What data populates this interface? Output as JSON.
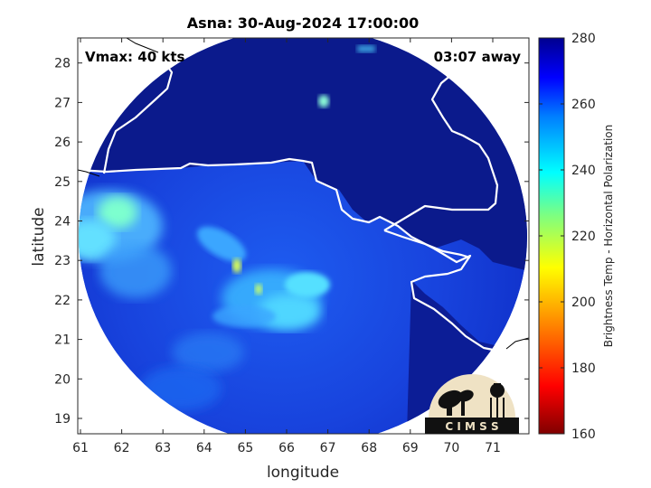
{
  "title": "Asna: 30-Aug-2024 17:00:00",
  "vmax_label": "Vmax: 40 kts",
  "away_label": "03:07 away",
  "xlabel": "longitude",
  "ylabel": "latitude",
  "x_ticks": [
    "61",
    "62",
    "63",
    "64",
    "65",
    "66",
    "67",
    "68",
    "69",
    "70",
    "71"
  ],
  "y_ticks": [
    "19",
    "20",
    "21",
    "22",
    "23",
    "24",
    "25",
    "26",
    "27",
    "28"
  ],
  "colorbar": {
    "label": "Brightness Temp - Horizontal Polarization",
    "ticks": [
      "160",
      "180",
      "200",
      "220",
      "240",
      "260",
      "280"
    ],
    "range": [
      160,
      280
    ]
  },
  "logo_text": "C I M S S",
  "colors": {
    "deep_blue": "#0a1fb8",
    "ring_blue": "#1840e0",
    "cloud_cyan": "#4fd6ff",
    "land_navy": "#0b1a8c",
    "coast": "#ffffff",
    "logo_bg": "#efe2c4"
  }
}
